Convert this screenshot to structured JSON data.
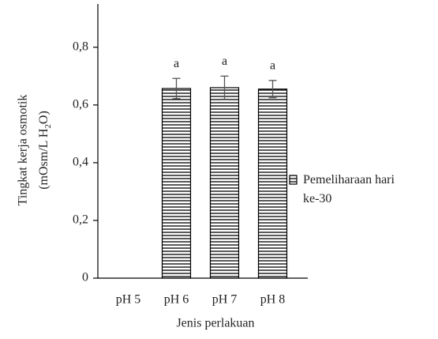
{
  "chart_data": {
    "type": "bar",
    "categories": [
      "pH 5",
      "pH 6",
      "pH 7",
      "pH 8"
    ],
    "series": [
      {
        "name": "Pemeliharaan hari ke-30",
        "color": "#000000",
        "values": [
          null,
          0.657,
          0.66,
          0.655
        ],
        "errors": [
          null,
          0.035,
          0.04,
          0.03
        ],
        "significance": [
          null,
          "a",
          "a",
          "a"
        ]
      }
    ],
    "ylim": [
      0,
      0.95
    ],
    "yticks": [
      0,
      {
        "value": 0.2,
        "label": "0,2"
      },
      {
        "value": 0.4,
        "label": "0,4"
      },
      {
        "value": 0.6,
        "label": "0,6"
      },
      {
        "value": 0.8,
        "label": "0,8"
      }
    ],
    "x_label": "Jenis perlakuan",
    "y_label": [
      "Tingkat kerja osmotik",
      "(mOsm/L H",
      "2",
      "O)"
    ],
    "legend": "right"
  }
}
